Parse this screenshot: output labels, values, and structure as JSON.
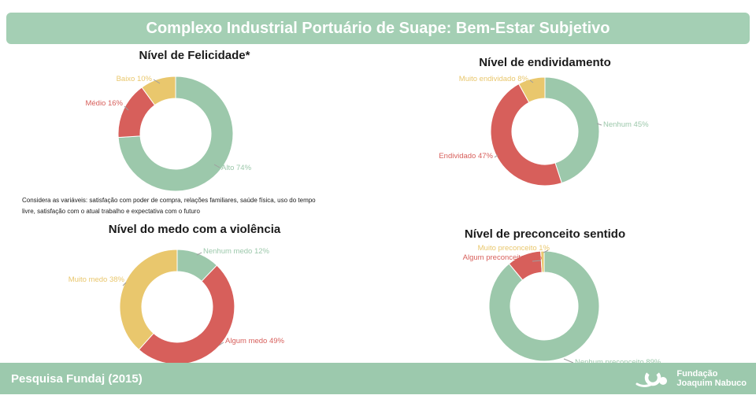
{
  "header": {
    "title": "Complexo Industrial Portuário de Suape: Bem-Estar Subjetivo"
  },
  "colors": {
    "green": "#9cc8ab",
    "red": "#d75f5b",
    "yellow": "#e9c76d",
    "header_bg": "#a4cfb4",
    "footer_bg": "#9cc9ad",
    "leader_line": "#9e9e9e",
    "chart_title_text": "#1b1b1b",
    "banner_text": "#ffffff"
  },
  "footnote": {
    "line1": "Considera as variáveis: satisfação com poder de compra, relações familiares, saúde física, uso do tempo",
    "line2": "livre, satisfação com o atual trabalho e expectativa com o futuro"
  },
  "footer": {
    "source": "Pesquisa Fundaj (2015)",
    "logo_line1": "Fundação",
    "logo_line2": "Joaquim Nabuco"
  },
  "chart_data": [
    {
      "type": "pie",
      "donut": true,
      "title": "Nível de Felicidade*",
      "slices": [
        {
          "label": "Alto",
          "value": 74,
          "color": "green",
          "display": "Alto 74%"
        },
        {
          "label": "Médio",
          "value": 16,
          "color": "red",
          "display": "Médio 16%"
        },
        {
          "label": "Baixo",
          "value": 10,
          "color": "yellow",
          "display": "Baixo 10%"
        }
      ]
    },
    {
      "type": "pie",
      "donut": true,
      "title": "Nível de endividamento",
      "slices": [
        {
          "label": "Nenhum",
          "value": 45,
          "color": "green",
          "display": "Nenhum 45%"
        },
        {
          "label": "Endividado",
          "value": 47,
          "color": "red",
          "display": "Endividado 47%"
        },
        {
          "label": "Muito endividado",
          "value": 8,
          "color": "yellow",
          "display": "Muito endividado 8%"
        }
      ]
    },
    {
      "type": "pie",
      "donut": true,
      "title": "Nível do medo com a violência",
      "slices": [
        {
          "label": "Nenhum medo",
          "value": 12,
          "color": "green",
          "display": "Nenhum medo 12%"
        },
        {
          "label": "Algum medo",
          "value": 49,
          "color": "red",
          "display": "Algum medo 49%"
        },
        {
          "label": "Muito medo",
          "value": 38,
          "color": "yellow",
          "display": "Muito medo 38%"
        }
      ]
    },
    {
      "type": "pie",
      "donut": true,
      "title": "Nível de preconceito sentido",
      "slices": [
        {
          "label": "Nenhum preconceito",
          "value": 89,
          "color": "green",
          "display": "Nenhum preconceito 89%"
        },
        {
          "label": "Algum preconceito",
          "value": 10,
          "color": "red",
          "display": "Algum preconceito 10%"
        },
        {
          "label": "Muito preconceito",
          "value": 1,
          "color": "yellow",
          "display": "Muito preconceito 1%"
        }
      ]
    }
  ]
}
